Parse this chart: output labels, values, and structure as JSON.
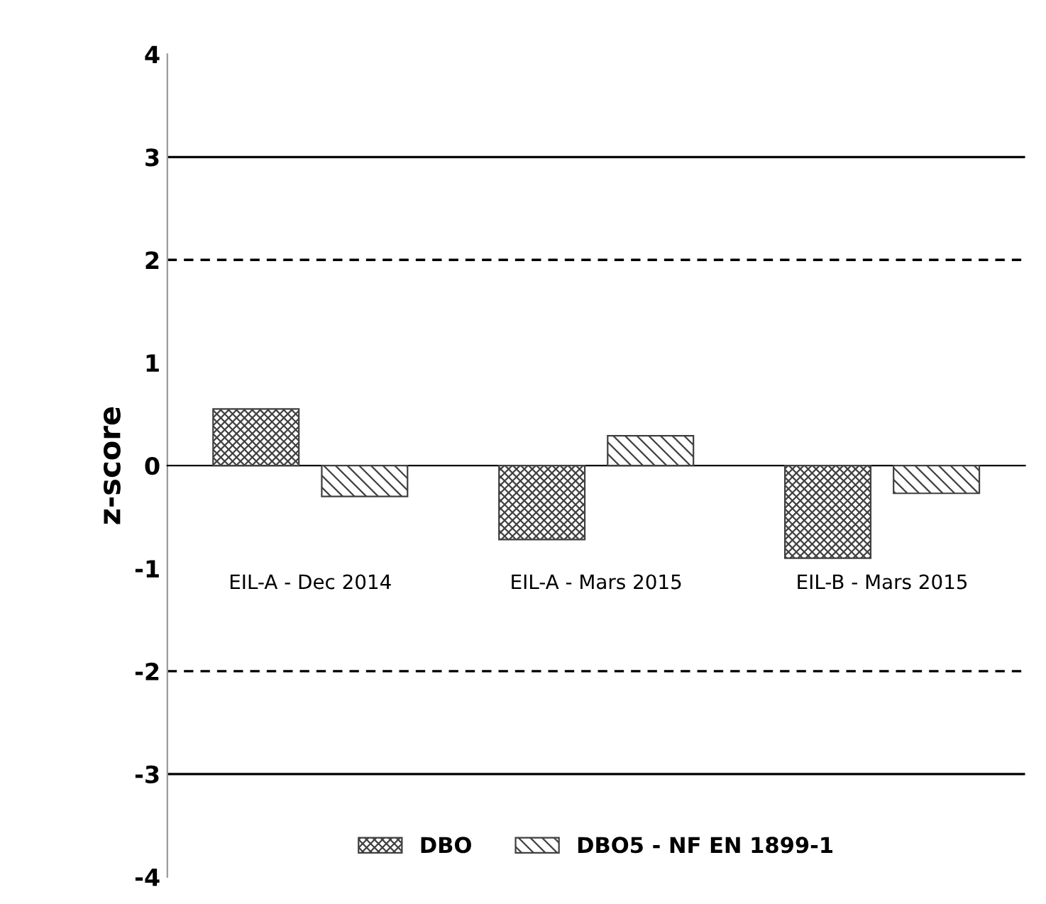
{
  "chart_data": {
    "type": "bar",
    "ylabel": "z-score",
    "categories": [
      "EIL-A - Dec 2014",
      "EIL-A - Mars 2015",
      "EIL-B - Mars 2015"
    ],
    "series": [
      {
        "name": "DBO",
        "color": "#404040",
        "values": [
          0.55,
          -0.72,
          -0.9
        ]
      },
      {
        "name": "DBO5 - NF EN 1899-1",
        "color": "#404040",
        "values": [
          -0.3,
          0.29,
          -0.27
        ]
      }
    ],
    "ylim": [
      -4,
      4
    ],
    "yticks": [
      -4,
      -3,
      -2,
      -1,
      0,
      1,
      2,
      3,
      4
    ],
    "ref_lines": [
      {
        "axis": "y",
        "value": 3,
        "color": "#000000",
        "line_style": "solid"
      },
      {
        "axis": "y",
        "value": 2,
        "color": "#000000",
        "line_style": "dashed"
      },
      {
        "axis": "y",
        "value": -2,
        "color": "#000000",
        "line_style": "dashed"
      },
      {
        "axis": "y",
        "value": -3,
        "color": "#000000",
        "line_style": "solid"
      }
    ],
    "grid": false,
    "legend": "bottom"
  }
}
